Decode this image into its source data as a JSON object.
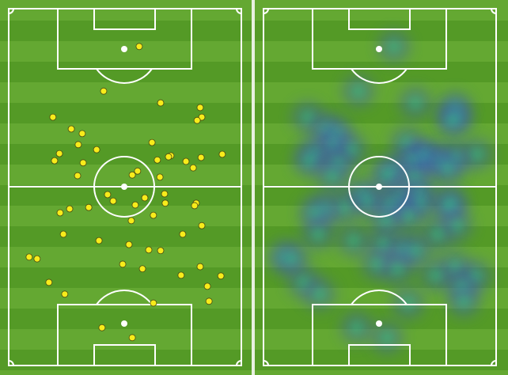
{
  "chart_data": {
    "type": "scatter",
    "x": [
      56.1,
      40.8,
      65.3,
      82.3,
      83.0,
      81.0,
      19.0,
      26.9,
      31.6,
      29.9,
      37.8,
      61.6,
      21.8,
      19.7,
      32.0,
      69.7,
      68.7,
      63.9,
      76.2,
      82.7,
      91.8,
      79.3,
      55.4,
      53.1,
      29.6,
      65.0,
      42.5,
      44.9,
      58.5,
      67.0,
      67.3,
      54.4,
      80.6,
      79.9,
      34.4,
      26.2,
      22.1,
      62.2,
      52.7,
      83.0,
      23.5,
      74.8,
      38.8,
      51.7,
      60.2,
      65.3,
      8.8,
      12.2,
      49.0,
      57.5,
      82.3,
      74.1,
      91.2,
      17.3,
      85.4,
      24.1,
      86.1,
      62.2,
      40.1,
      53.1
    ],
    "y": [
      10.6,
      23.1,
      26.4,
      27.7,
      30.4,
      31.3,
      30.4,
      33.7,
      35.0,
      38.1,
      39.5,
      37.5,
      40.6,
      42.6,
      43.2,
      41.2,
      41.5,
      42.4,
      42.8,
      41.7,
      40.8,
      44.6,
      45.5,
      46.6,
      46.8,
      47.2,
      52.1,
      53.9,
      53.0,
      51.9,
      54.5,
      55.0,
      54.5,
      55.2,
      55.7,
      56.1,
      57.2,
      57.9,
      59.4,
      60.8,
      63.2,
      63.2,
      65.0,
      66.1,
      67.6,
      67.8,
      69.6,
      70.1,
      71.6,
      72.9,
      72.3,
      74.7,
      74.9,
      76.7,
      77.8,
      80.0,
      82.0,
      82.5,
      89.4,
      92.2
    ],
    "xlim": [
      0,
      100
    ],
    "ylim": [
      0,
      100
    ],
    "color": "#f7ec1b"
  }
}
